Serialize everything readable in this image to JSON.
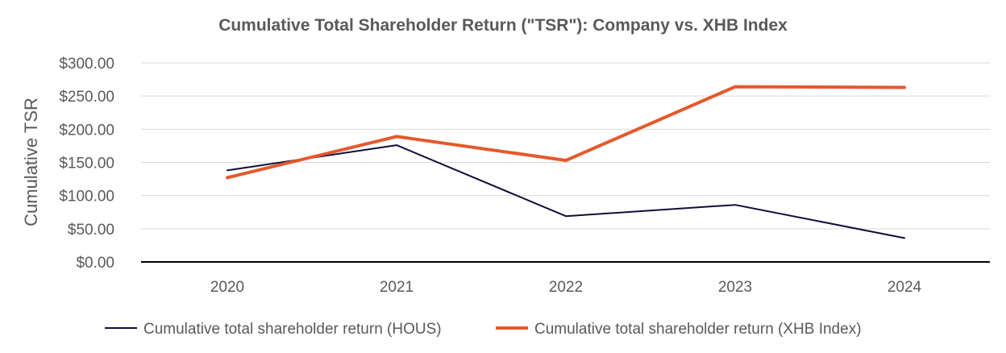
{
  "chart_data": {
    "type": "line",
    "title": "Cumulative Total Shareholder Return (\"TSR\"): Company vs. XHB Index",
    "xlabel": "",
    "ylabel": "Cumulative TSR",
    "categories": [
      "2020",
      "2021",
      "2022",
      "2023",
      "2024"
    ],
    "ylim": [
      0,
      300
    ],
    "yticks": [
      0,
      50,
      100,
      150,
      200,
      250,
      300
    ],
    "ytick_labels": [
      "$0.00",
      "$50.00",
      "$100.00",
      "$150.00",
      "$200.00",
      "$250.00",
      "$300.00"
    ],
    "grid": true,
    "legend_position": "bottom",
    "series": [
      {
        "name": "Cumulative total shareholder return (HOUS)",
        "color": "#0f0f3a",
        "values": [
          138,
          176,
          69,
          86,
          36
        ]
      },
      {
        "name": "Cumulative total shareholder return (XHB Index)",
        "color": "#e4592c",
        "values": [
          127,
          189,
          153,
          264,
          263
        ]
      }
    ]
  }
}
